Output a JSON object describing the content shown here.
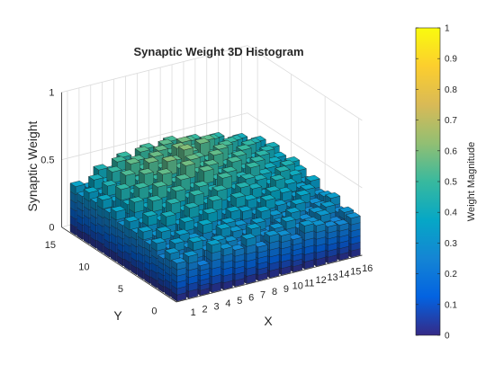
{
  "chart_data": {
    "type": "bar3d",
    "title": "Synaptic Weight 3D Histogram",
    "xlabel": "X",
    "ylabel": "Y",
    "zlabel": "Synaptic Weight",
    "x_ticks": [
      "1",
      "2",
      "3",
      "4",
      "5",
      "6",
      "7",
      "8",
      "9",
      "10",
      "11",
      "12",
      "13",
      "14",
      "15",
      "16"
    ],
    "y_ticks": [
      "0",
      "5",
      "10",
      "15"
    ],
    "z_ticks": [
      "0",
      "0.5",
      "1"
    ],
    "zlim": [
      0,
      1
    ],
    "grid": true,
    "colormap": "parula",
    "colorbar": {
      "label": "Weight Magnitude",
      "ticks": [
        "0",
        "0.1",
        "0.2",
        "0.3",
        "0.4",
        "0.5",
        "0.6",
        "0.7",
        "0.8",
        "0.9",
        "1"
      ],
      "range": [
        0,
        1
      ]
    },
    "weights": [
      [
        0.28,
        0.31,
        0.22,
        0.35,
        0.3,
        0.27,
        0.33,
        0.25,
        0.31,
        0.29,
        0.24,
        0.32,
        0.3,
        0.27,
        0.26,
        0.29
      ],
      [
        0.32,
        0.26,
        0.36,
        0.28,
        0.33,
        0.3,
        0.25,
        0.35,
        0.28,
        0.31,
        0.34,
        0.27,
        0.29,
        0.32,
        0.25,
        0.3
      ],
      [
        0.25,
        0.34,
        0.29,
        0.31,
        0.27,
        0.36,
        0.32,
        0.28,
        0.34,
        0.26,
        0.3,
        0.35,
        0.28,
        0.31,
        0.33,
        0.27
      ],
      [
        0.33,
        0.27,
        0.35,
        0.3,
        0.38,
        0.29,
        0.35,
        0.31,
        0.27,
        0.37,
        0.32,
        0.29,
        0.36,
        0.28,
        0.3,
        0.34
      ],
      [
        0.29,
        0.36,
        0.31,
        0.39,
        0.33,
        0.41,
        0.3,
        0.38,
        0.36,
        0.32,
        0.4,
        0.34,
        0.31,
        0.37,
        0.29,
        0.32
      ],
      [
        0.35,
        0.3,
        0.42,
        0.34,
        0.44,
        0.37,
        0.45,
        0.33,
        0.43,
        0.39,
        0.35,
        0.41,
        0.38,
        0.33,
        0.36,
        0.3
      ],
      [
        0.31,
        0.41,
        0.36,
        0.46,
        0.39,
        0.48,
        0.4,
        0.47,
        0.37,
        0.45,
        0.42,
        0.36,
        0.44,
        0.39,
        0.34,
        0.37
      ],
      [
        0.36,
        0.33,
        0.47,
        0.4,
        0.5,
        0.43,
        0.49,
        0.44,
        0.51,
        0.41,
        0.46,
        0.43,
        0.38,
        0.45,
        0.4,
        0.33
      ],
      [
        0.3,
        0.45,
        0.39,
        0.52,
        0.46,
        0.53,
        0.45,
        0.55,
        0.47,
        0.5,
        0.44,
        0.49,
        0.42,
        0.37,
        0.44,
        0.38
      ],
      [
        0.37,
        0.4,
        0.5,
        0.44,
        0.56,
        0.48,
        0.58,
        0.51,
        0.54,
        0.46,
        0.52,
        0.45,
        0.48,
        0.41,
        0.36,
        0.41
      ],
      [
        0.33,
        0.48,
        0.43,
        0.55,
        0.49,
        0.6,
        0.53,
        0.57,
        0.5,
        0.56,
        0.47,
        0.51,
        0.44,
        0.47,
        0.4,
        0.35
      ],
      [
        0.39,
        0.36,
        0.53,
        0.47,
        0.58,
        0.52,
        0.55,
        0.61,
        0.53,
        0.49,
        0.55,
        0.46,
        0.5,
        0.42,
        0.45,
        0.38
      ],
      [
        0.34,
        0.44,
        0.4,
        0.56,
        0.5,
        0.57,
        0.51,
        0.59,
        0.54,
        0.58,
        0.48,
        0.52,
        0.43,
        0.48,
        0.39,
        0.42
      ],
      [
        0.38,
        0.35,
        0.49,
        0.45,
        0.53,
        0.47,
        0.56,
        0.52,
        0.58,
        0.51,
        0.55,
        0.45,
        0.49,
        0.41,
        0.44,
        0.36
      ],
      [
        0.32,
        0.42,
        0.38,
        0.51,
        0.46,
        0.54,
        0.49,
        0.55,
        0.5,
        0.53,
        0.47,
        0.5,
        0.42,
        0.45,
        0.37,
        0.4
      ],
      [
        0.36,
        0.33,
        0.44,
        0.41,
        0.49,
        0.43,
        0.51,
        0.47,
        0.52,
        0.46,
        0.49,
        0.43,
        0.46,
        0.38,
        0.41,
        0.34
      ]
    ]
  }
}
